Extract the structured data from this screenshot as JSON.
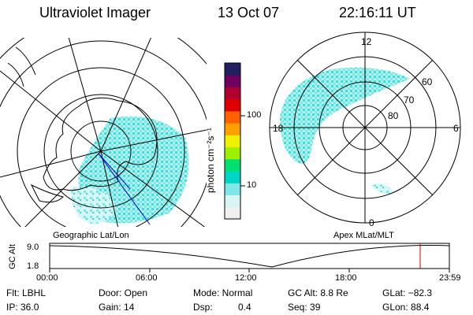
{
  "header": {
    "instrument": "Ultraviolet Imager",
    "date": "13 Oct 07",
    "time": "22:16:11 UT"
  },
  "colorbar": {
    "unit_label": "photon cm⁻²s⁻¹",
    "ticks": [
      "100",
      "10"
    ],
    "colors": [
      "#f0f0f0",
      "#d8f4f4",
      "#7fe7e7",
      "#00d6c8",
      "#00e070",
      "#9cf000",
      "#f0f000",
      "#ffa000",
      "#ff6000",
      "#e00000",
      "#b00030",
      "#700060",
      "#202060"
    ]
  },
  "left_map": {
    "caption": "Geographic Lat/Lon"
  },
  "right_map": {
    "caption": "Apex  MLat/MLT",
    "lat_labels": [
      "60",
      "70",
      "80"
    ],
    "mlt_labels": {
      "top": "12",
      "left": "18",
      "right": "6",
      "bottom": "0"
    }
  },
  "timeline": {
    "axis_label": "GC Alt",
    "y_ticks": [
      "9.0",
      "1.8"
    ],
    "x_ticks": [
      "00:00",
      "06:00",
      "12:00",
      "18:00",
      "23:59"
    ],
    "marker_color": "#cc0000"
  },
  "status": {
    "flt": "Flt: LBHL",
    "ip": "IP: 36.0",
    "door": "Door: Open",
    "gain": "Gain: 14",
    "mode": "Mode: Normal",
    "dsp_label": "Dsp:",
    "dsp_value": "0.4",
    "gc_alt": "GC Alt: 8.8 Re",
    "seq": "Seq: 39",
    "glat": "GLat: −82.3",
    "glon": "GLon: 88.4"
  }
}
